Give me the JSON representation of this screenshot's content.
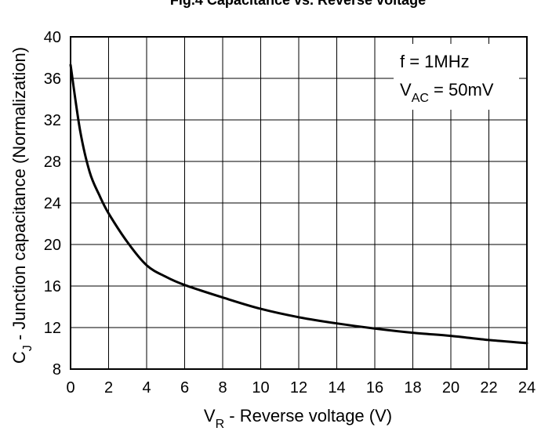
{
  "chart_data": {
    "type": "line",
    "title": "Fig.4 Capacitance vs. Reverse voltage",
    "xlabel": {
      "main": "V",
      "sub": "R",
      "rest": " - Reverse voltage (V)"
    },
    "ylabel": {
      "main": "C",
      "sub": "J",
      "rest": " - Junction capacitance (Normalization)"
    },
    "xlim": [
      0,
      24
    ],
    "ylim": [
      8,
      40
    ],
    "xticks": [
      "0",
      "2",
      "4",
      "6",
      "8",
      "10",
      "12",
      "14",
      "16",
      "18",
      "20",
      "22",
      "24"
    ],
    "yticks": [
      "8",
      "12",
      "16",
      "20",
      "24",
      "28",
      "32",
      "36",
      "40"
    ],
    "grid": true,
    "annotations": {
      "line1": "f = 1MHz",
      "line2_main": "V",
      "line2_sub": "AC",
      "line2_rest": " = 50mV"
    },
    "series": [
      {
        "x": [
          0,
          0.5,
          1,
          1.5,
          2,
          3,
          4,
          5,
          6,
          8,
          10,
          12,
          14,
          16,
          18,
          20,
          22,
          24
        ],
        "y": [
          37.3,
          31.0,
          27.0,
          24.8,
          23.0,
          20.2,
          18.0,
          16.9,
          16.1,
          14.9,
          13.8,
          13.0,
          12.4,
          11.9,
          11.5,
          11.2,
          10.8,
          10.5
        ]
      }
    ],
    "colors": {
      "line": "#000000",
      "grid": "#000000",
      "background": "#ffffff"
    }
  }
}
